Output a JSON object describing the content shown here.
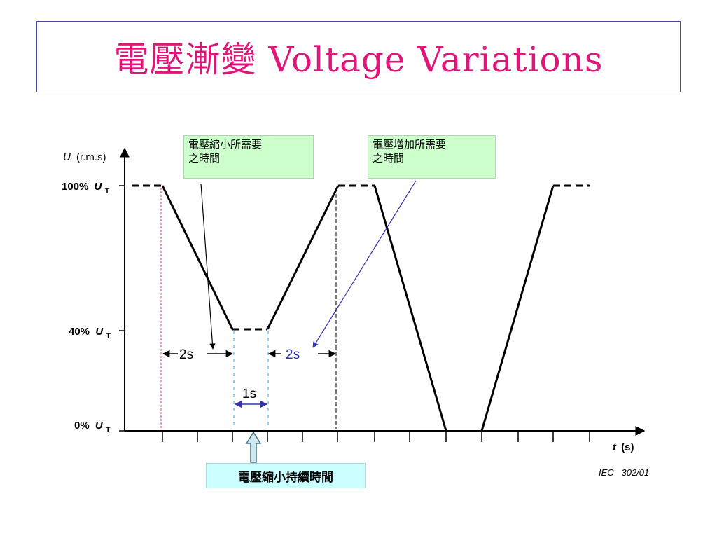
{
  "title": "電壓漸變 Voltage Variations",
  "y_axis_label": {
    "var": "U",
    "unit": "(r.m.s)"
  },
  "levels": [
    {
      "pct": "100%",
      "var": "U",
      "sub": "T"
    },
    {
      "pct": "40%",
      "var": "U",
      "sub": "T"
    },
    {
      "pct": "0%",
      "var": "U",
      "sub": "T"
    }
  ],
  "x_axis_label": {
    "var": "t",
    "unit": "(s)"
  },
  "durations": {
    "decrease": "2s",
    "hold": "1s",
    "increase": "2s"
  },
  "notes": {
    "decrease_time": [
      "電壓縮小所需要",
      "之時間"
    ],
    "increase_time": [
      "電壓增加所需要",
      "之時間"
    ],
    "hold_time": "電壓縮小持續時間"
  },
  "reference": "IEC   302/01",
  "colors": {
    "title": "#e0157a",
    "note_green": "#ccffcc",
    "note_cyan": "#ccffff",
    "arrow_blue": "#3333aa",
    "red_guide": "#e04060",
    "cyan_guide": "#3aa0c8"
  }
}
